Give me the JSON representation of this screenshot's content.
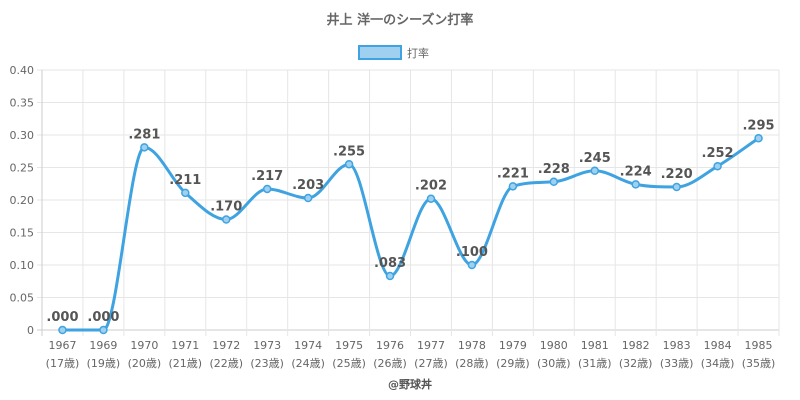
{
  "chart_data": {
    "type": "line",
    "title": "井上 洋一のシーズン打率",
    "legend": {
      "label": "打率",
      "position": "top"
    },
    "categories": [
      "1967",
      "1969",
      "1970",
      "1971",
      "1972",
      "1973",
      "1974",
      "1975",
      "1976",
      "1977",
      "1978",
      "1979",
      "1980",
      "1981",
      "1982",
      "1983",
      "1984",
      "1985"
    ],
    "sublabels": [
      "(17歳)",
      "(19歳)",
      "(20歳)",
      "(21歳)",
      "(22歳)",
      "(23歳)",
      "(24歳)",
      "(25歳)",
      "(26歳)",
      "(27歳)",
      "(28歳)",
      "(29歳)",
      "(30歳)",
      "(31歳)",
      "(32歳)",
      "(33歳)",
      "(34歳)",
      "(35歳)"
    ],
    "series": [
      {
        "name": "打率",
        "values": [
          0.0,
          0.0,
          0.281,
          0.211,
          0.17,
          0.217,
          0.203,
          0.255,
          0.083,
          0.202,
          0.1,
          0.221,
          0.228,
          0.245,
          0.224,
          0.22,
          0.252,
          0.295
        ],
        "labels": [
          ".000",
          ".000",
          ".281",
          ".211",
          ".170",
          ".217",
          ".203",
          ".255",
          ".083",
          ".202",
          ".100",
          ".221",
          ".228",
          ".245",
          ".224",
          ".220",
          ".252",
          ".295"
        ]
      }
    ],
    "ylim": [
      0,
      0.4
    ],
    "yticks": [
      0,
      0.05,
      0.1,
      0.15,
      0.2,
      0.25,
      0.3,
      0.35,
      0.4
    ],
    "ytick_labels": [
      "0",
      "0.05",
      "0.10",
      "0.15",
      "0.20",
      "0.25",
      "0.30",
      "0.35",
      "0.40"
    ],
    "grid": true,
    "colors": {
      "line": "#3ea3e0",
      "fill": "#9fd0f0",
      "grid": "#e6e6e6"
    }
  },
  "credit": "@野球丼"
}
